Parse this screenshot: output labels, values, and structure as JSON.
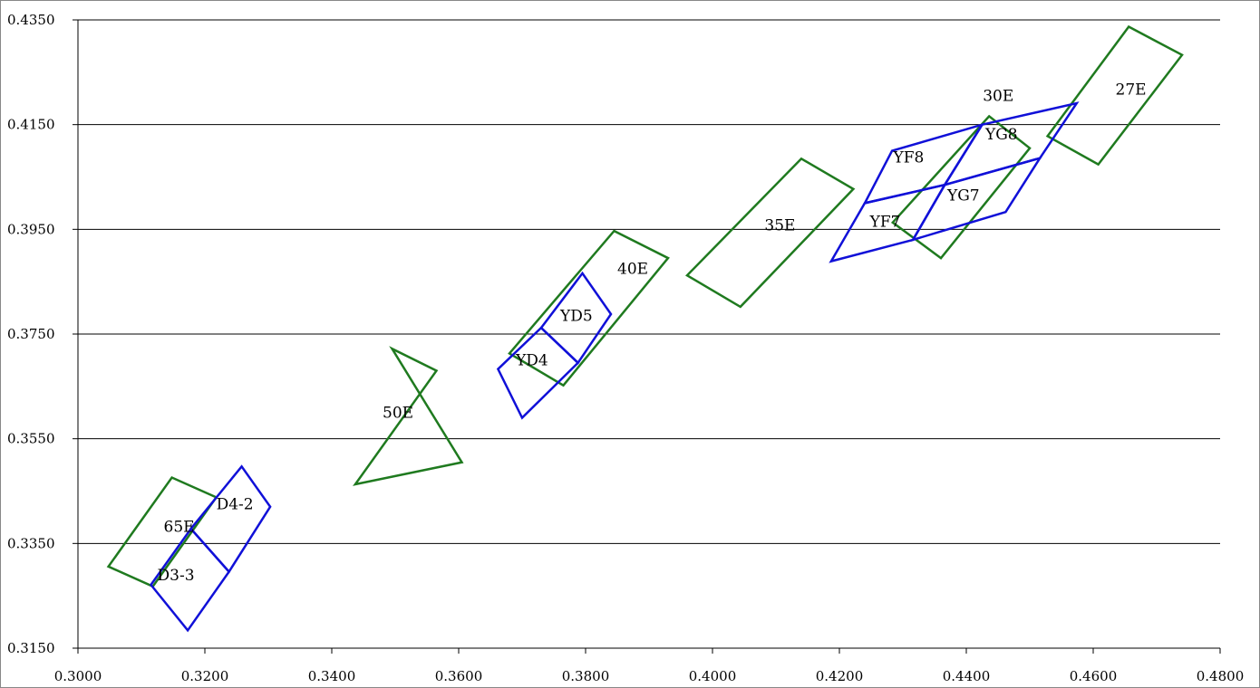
{
  "chart_data": {
    "type": "diagram",
    "xlim": [
      0.3,
      0.48
    ],
    "ylim": [
      0.315,
      0.435
    ],
    "x_ticks": [
      "0.3000",
      "0.3200",
      "0.3400",
      "0.3600",
      "0.3800",
      "0.4000",
      "0.4200",
      "0.4400",
      "0.4600",
      "0.4800"
    ],
    "x_tick_values": [
      0.3,
      0.32,
      0.34,
      0.36,
      0.38,
      0.4,
      0.42,
      0.44,
      0.46,
      0.48
    ],
    "y_ticks": [
      "0.3150",
      "0.3350",
      "0.3550",
      "0.3750",
      "0.3950",
      "0.4150",
      "0.4350"
    ],
    "y_tick_values": [
      0.315,
      0.335,
      0.355,
      0.375,
      0.395,
      0.415,
      0.435
    ],
    "grid": "horizontal",
    "colors": {
      "green": "#1f7a1f",
      "blue": "#1010d8"
    },
    "regions": [
      {
        "label": "65E",
        "color": "green",
        "points": [
          [
            0.3048,
            0.3306
          ],
          [
            0.3148,
            0.3476
          ],
          [
            0.3218,
            0.3438
          ],
          [
            0.3118,
            0.3268
          ]
        ],
        "label_at": [
          0.3135,
          0.3372
        ]
      },
      {
        "label": "50E",
        "color": "green",
        "points": [
          [
            0.3605,
            0.3505
          ],
          [
            0.3495,
            0.3722
          ],
          [
            0.3565,
            0.368
          ],
          [
            0.3437,
            0.3463
          ]
        ],
        "label_at": [
          0.348,
          0.359
        ]
      },
      {
        "label": "40E",
        "color": "green",
        "points": [
          [
            0.368,
            0.3713
          ],
          [
            0.3845,
            0.3947
          ],
          [
            0.393,
            0.3895
          ],
          [
            0.3765,
            0.3652
          ]
        ],
        "label_at": [
          0.385,
          0.3865
        ]
      },
      {
        "label": "35E",
        "color": "green",
        "points": [
          [
            0.396,
            0.3862
          ],
          [
            0.414,
            0.4085
          ],
          [
            0.4222,
            0.4027
          ],
          [
            0.4044,
            0.3802
          ]
        ],
        "label_at": [
          0.4082,
          0.3948
        ]
      },
      {
        "label": "30E",
        "color": "green",
        "points": [
          [
            0.4284,
            0.3963
          ],
          [
            0.4436,
            0.4166
          ],
          [
            0.45,
            0.4105
          ],
          [
            0.436,
            0.3895
          ]
        ],
        "label_at": [
          0.4426,
          0.4195
        ]
      },
      {
        "label": "27E",
        "color": "green",
        "points": [
          [
            0.4528,
            0.4128
          ],
          [
            0.4656,
            0.4337
          ],
          [
            0.474,
            0.4283
          ],
          [
            0.4608,
            0.4074
          ]
        ],
        "label_at": [
          0.4635,
          0.4207
        ]
      },
      {
        "label": "D3-3",
        "color": "blue",
        "points": [
          [
            0.3115,
            0.3271
          ],
          [
            0.3178,
            0.3378
          ],
          [
            0.3238,
            0.3296
          ],
          [
            0.3173,
            0.3184
          ]
        ],
        "label_at": [
          0.3125,
          0.328
        ]
      },
      {
        "label": "D4-2",
        "color": "blue",
        "points": [
          [
            0.3178,
            0.3378
          ],
          [
            0.3258,
            0.3497
          ],
          [
            0.3303,
            0.342
          ],
          [
            0.3238,
            0.3296
          ]
        ],
        "label_at": [
          0.3218,
          0.3415
        ]
      },
      {
        "label": "YD4",
        "color": "blue",
        "points": [
          [
            0.3662,
            0.3683
          ],
          [
            0.373,
            0.3762
          ],
          [
            0.3788,
            0.3695
          ],
          [
            0.37,
            0.359
          ]
        ],
        "label_at": [
          0.369,
          0.369
        ]
      },
      {
        "label": "YD5",
        "color": "blue",
        "points": [
          [
            0.373,
            0.3762
          ],
          [
            0.3795,
            0.3866
          ],
          [
            0.384,
            0.3788
          ],
          [
            0.3788,
            0.3695
          ]
        ],
        "label_at": [
          0.376,
          0.3775
        ]
      },
      {
        "label": "YF7",
        "color": "blue",
        "points": [
          [
            0.4187,
            0.3889
          ],
          [
            0.424,
            0.4
          ],
          [
            0.4366,
            0.4035
          ],
          [
            0.4316,
            0.393
          ]
        ],
        "label_at": [
          0.4248,
          0.3955
        ]
      },
      {
        "label": "YF8",
        "color": "blue",
        "points": [
          [
            0.424,
            0.4
          ],
          [
            0.4283,
            0.41
          ],
          [
            0.4425,
            0.415
          ],
          [
            0.4366,
            0.4035
          ]
        ],
        "label_at": [
          0.4285,
          0.4078
        ]
      },
      {
        "label": "YG7",
        "color": "blue",
        "points": [
          [
            0.4316,
            0.393
          ],
          [
            0.4366,
            0.4035
          ],
          [
            0.4516,
            0.4086
          ],
          [
            0.4462,
            0.3983
          ]
        ],
        "label_at": [
          0.437,
          0.4005
        ]
      },
      {
        "label": "YG8",
        "color": "blue",
        "points": [
          [
            0.4366,
            0.4035
          ],
          [
            0.4425,
            0.415
          ],
          [
            0.4574,
            0.4191
          ],
          [
            0.4516,
            0.4086
          ]
        ],
        "label_at": [
          0.443,
          0.4122
        ]
      }
    ]
  }
}
